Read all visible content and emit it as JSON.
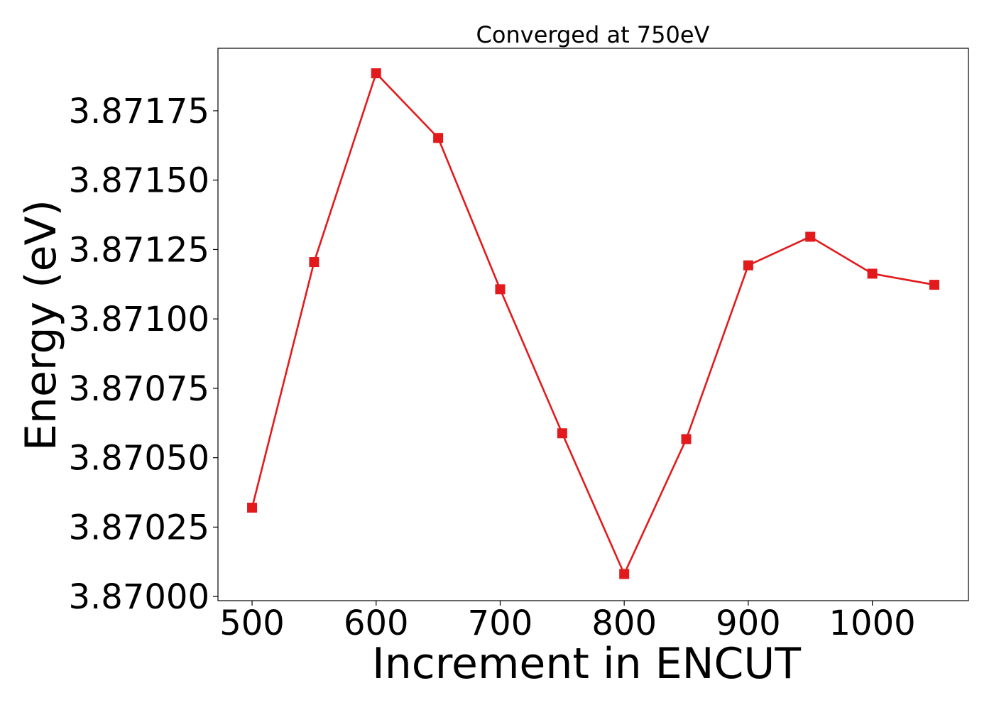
{
  "chart_data": {
    "type": "line",
    "title": "Converged at 750eV",
    "xlabel": "Increment in ENCUT",
    "ylabel": "Energy (eV)",
    "xlim": [
      472.5,
      1077.5
    ],
    "ylim": [
      3.869985,
      3.871975
    ],
    "x_ticks": [
      500,
      600,
      700,
      800,
      900,
      1000
    ],
    "x_tick_labels": [
      "500",
      "600",
      "700",
      "800",
      "900",
      "1000"
    ],
    "y_ticks": [
      3.87,
      3.87025,
      3.8705,
      3.87075,
      3.871,
      3.87125,
      3.8715,
      3.87175
    ],
    "y_tick_labels": [
      "3.87000",
      "3.87025",
      "3.87050",
      "3.87075",
      "3.87100",
      "3.87125",
      "3.87150",
      "3.87175"
    ],
    "grid": false,
    "series": [
      {
        "color": "#e31a1c",
        "marker": "square",
        "x": [
          500,
          550,
          600,
          650,
          700,
          750,
          800,
          850,
          900,
          950,
          1000,
          1050
        ],
        "values": [
          3.87032,
          3.871205,
          3.871885,
          3.871652,
          3.871107,
          3.870588,
          3.870081,
          3.870567,
          3.871193,
          3.871296,
          3.871163,
          3.871123
        ]
      }
    ]
  }
}
